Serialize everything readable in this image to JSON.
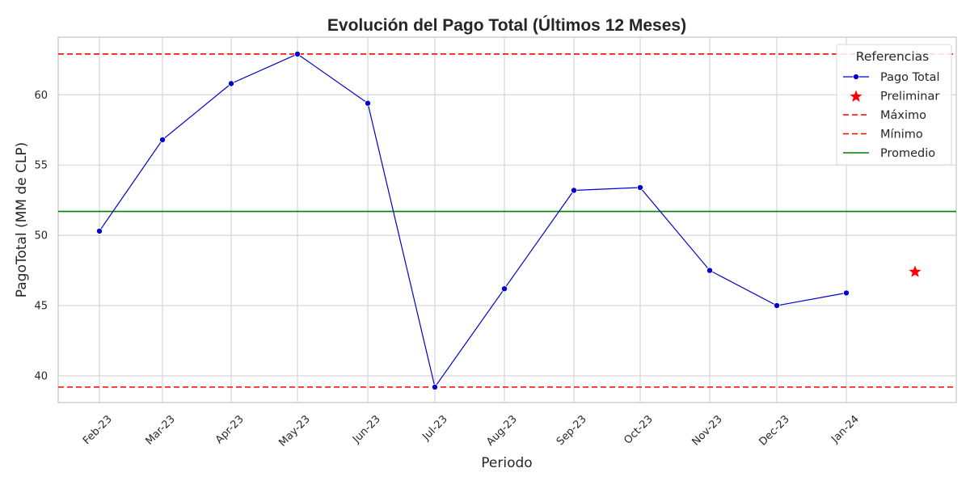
{
  "chart_data": {
    "type": "line",
    "title": "Evolución del Pago Total (Últimos 12 Meses)",
    "xlabel": "Periodo",
    "ylabel": "PagoTotal (MM de CLP)",
    "categories": [
      "Feb-23",
      "Mar-23",
      "Apr-23",
      "May-23",
      "Jun-23",
      "Jul-23",
      "Aug-23",
      "Sep-23",
      "Oct-23",
      "Nov-23",
      "Dec-23",
      "Jan-24"
    ],
    "series": [
      {
        "name": "Pago Total",
        "color": "#0000cc",
        "values": [
          50.3,
          56.8,
          60.8,
          62.9,
          59.4,
          39.2,
          46.2,
          53.2,
          53.4,
          47.5,
          45.0,
          45.9
        ]
      }
    ],
    "preliminar": {
      "name": "Preliminar",
      "value": 47.4,
      "color": "#ff0000"
    },
    "reference_lines": [
      {
        "name": "Máximo",
        "value": 62.9,
        "color": "#ff0000",
        "style": "dashed"
      },
      {
        "name": "Mínimo",
        "value": 39.2,
        "color": "#ff0000",
        "style": "dashed"
      },
      {
        "name": "Promedio",
        "value": 51.7,
        "color": "#008000",
        "style": "solid"
      }
    ],
    "yticks": [
      40,
      45,
      50,
      55,
      60
    ],
    "ylim": [
      38.1,
      64.1
    ],
    "grid": true,
    "legend_title": "Referencias",
    "legend_position": "top-right"
  }
}
